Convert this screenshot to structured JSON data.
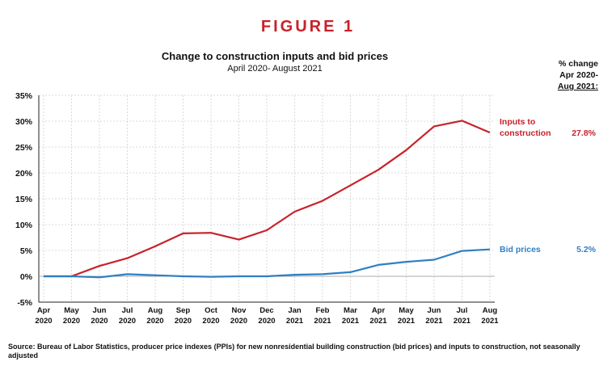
{
  "figure_label": "FIGURE 1",
  "pct_header": {
    "line1": "% change",
    "line2": "Apr 2020-",
    "line3": "Aug 2021:"
  },
  "source": "Source: Bureau of Labor Statistics, producer price indexes (PPIs) for new nonresidential building construction (bid prices) and inputs to construction, not seasonally adjusted",
  "colors": {
    "inputs": "#c8222a",
    "bid": "#2f7fc2",
    "grid": "#d0d0d0",
    "axis": "#222222"
  },
  "chart_data": {
    "type": "line",
    "title": "Change to construction inputs and bid prices",
    "subtitle": "April 2020- August 2021",
    "xlabel": "",
    "ylabel": "",
    "ylim": [
      -5,
      35
    ],
    "yticks": [
      -5,
      0,
      5,
      10,
      15,
      20,
      25,
      30,
      35
    ],
    "ytick_labels": [
      "-5%",
      "0%",
      "5%",
      "10%",
      "15%",
      "20%",
      "25%",
      "30%",
      "35%"
    ],
    "grid": true,
    "categories": [
      {
        "month": "Apr",
        "year": "2020"
      },
      {
        "month": "May",
        "year": "2020"
      },
      {
        "month": "Jun",
        "year": "2020"
      },
      {
        "month": "Jul",
        "year": "2020"
      },
      {
        "month": "Aug",
        "year": "2020"
      },
      {
        "month": "Sep",
        "year": "2020"
      },
      {
        "month": "Oct",
        "year": "2020"
      },
      {
        "month": "Nov",
        "year": "2020"
      },
      {
        "month": "Dec",
        "year": "2020"
      },
      {
        "month": "Jan",
        "year": "2021"
      },
      {
        "month": "Feb",
        "year": "2021"
      },
      {
        "month": "Mar",
        "year": "2021"
      },
      {
        "month": "Apr",
        "year": "2021"
      },
      {
        "month": "May",
        "year": "2021"
      },
      {
        "month": "Jun",
        "year": "2021"
      },
      {
        "month": "Jul",
        "year": "2021"
      },
      {
        "month": "Aug",
        "year": "2021"
      }
    ],
    "series": [
      {
        "name": "Inputs to construction",
        "label_line1": "Inputs to",
        "label_line2": "construction",
        "change": "27.8%",
        "values": [
          0,
          0,
          2.0,
          3.5,
          5.8,
          8.3,
          8.4,
          7.1,
          8.9,
          12.5,
          14.6,
          17.6,
          20.6,
          24.4,
          29.0,
          30.1,
          27.8
        ]
      },
      {
        "name": "Bid prices",
        "label_line1": "Bid prices",
        "label_line2": "",
        "change": "5.2%",
        "values": [
          0,
          0,
          -0.2,
          0.4,
          0.2,
          0.0,
          -0.1,
          0.0,
          0.0,
          0.3,
          0.4,
          0.8,
          2.2,
          2.8,
          3.2,
          4.9,
          5.2
        ]
      }
    ]
  }
}
